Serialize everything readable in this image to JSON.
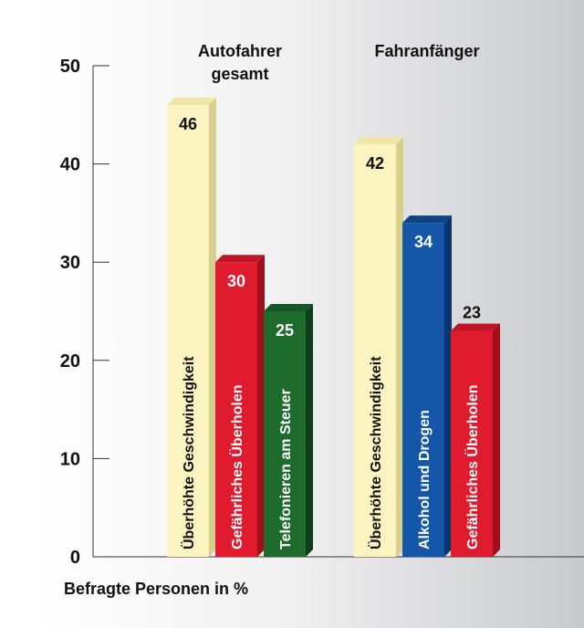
{
  "chart_data": {
    "type": "bar",
    "ylim": [
      0,
      50
    ],
    "yticks": [
      0,
      10,
      20,
      30,
      40,
      50
    ],
    "ylabel": "Befragte Personen in %",
    "grid": false,
    "groups": [
      {
        "title_lines": [
          "Autofahrer",
          "gesamt"
        ],
        "bars": [
          {
            "label": "Überhöhte Geschwindigkeit",
            "value": 46,
            "color": "#fbf4c0",
            "side_color": "#d9cf8c",
            "top_color": "#efe6a8",
            "text_color": "#111111",
            "value_color": "#111111"
          },
          {
            "label": "Gefährliches Überholen",
            "value": 30,
            "color": "#e01b2d",
            "side_color": "#a10f1c",
            "top_color": "#c01524",
            "text_color": "#ffffff",
            "value_color": "#ffffff"
          },
          {
            "label": "Telefonieren am Steuer",
            "value": 25,
            "color": "#1e6b2e",
            "side_color": "#0e3f1a",
            "top_color": "#17552a",
            "text_color": "#ffffff",
            "value_color": "#ffffff"
          }
        ]
      },
      {
        "title_lines": [
          "Fahranfänger"
        ],
        "bars": [
          {
            "label": "Überhöhte Geschwindigkeit",
            "value": 42,
            "color": "#fbf4c0",
            "side_color": "#d9cf8c",
            "top_color": "#efe6a8",
            "text_color": "#111111",
            "value_color": "#111111"
          },
          {
            "label": "Alkohol und Drogen",
            "value": 34,
            "color": "#1456a8",
            "side_color": "#0b3570",
            "top_color": "#0f4386",
            "text_color": "#ffffff",
            "value_color": "#ffffff"
          },
          {
            "label": "Gefährliches Überholen",
            "value": 23,
            "color": "#e01b2d",
            "side_color": "#a10f1c",
            "top_color": "#c01524",
            "text_color": "#ffffff",
            "value_color": "#111111",
            "value_above": true
          }
        ]
      }
    ]
  }
}
